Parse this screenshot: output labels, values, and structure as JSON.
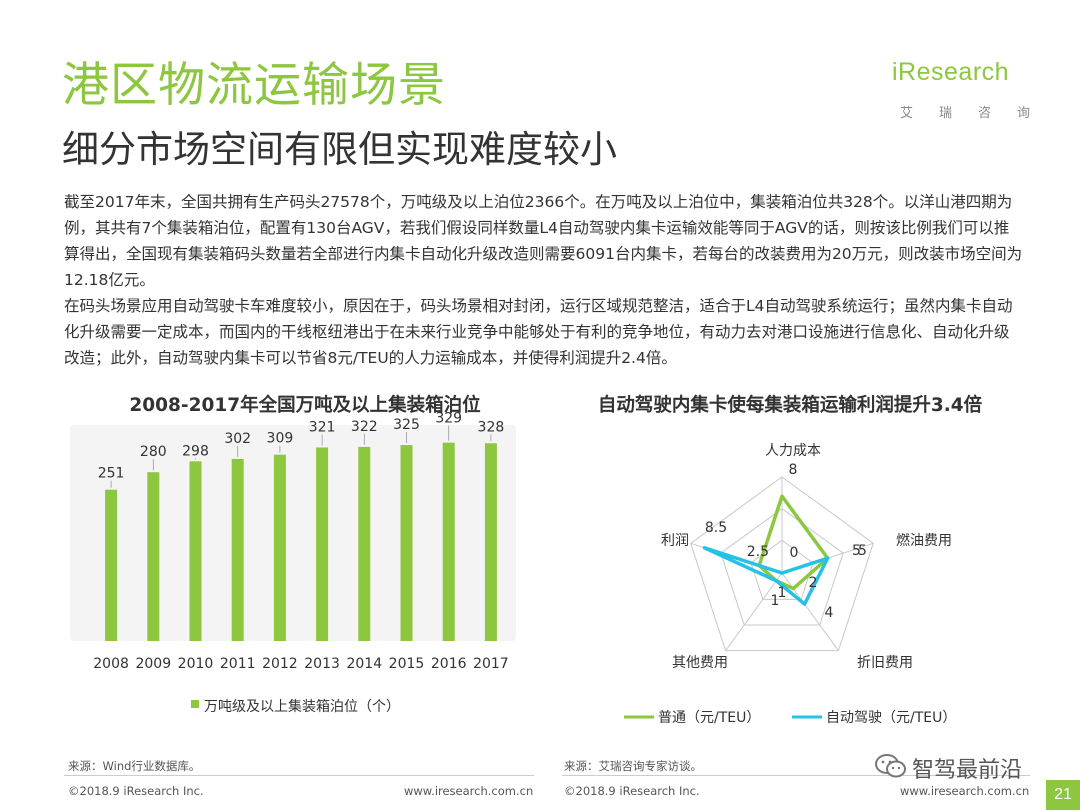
{
  "page": {
    "title": "港区物流运输场景",
    "subtitle": "细分市场空间有限但实现难度较小",
    "logo": {
      "word": "iResearch",
      "sub": [
        "艾",
        "瑞",
        "咨",
        "询"
      ]
    },
    "body": [
      "截至2017年末，全国共拥有生产码头27578个，万吨级及以上泊位2366个。在万吨及以上泊位中，集装箱泊位共328个。以洋山港四期为例，其共有7个集装箱泊位，配置有130台AGV，若我们假设同样数量L4自动驾驶内集卡运输效能等同于AGV的话，则按该比例我们可以推算得出，全国现有集装箱码头数量若全部进行内集卡自动化升级改造则需要6091台内集卡，若每台的改装费用为20万元，则改装市场空间为12.18亿元。",
      "在码头场景应用自动驾驶卡车难度较小，原因在于，码头场景相对封闭，运行区域规范整洁，适合于L4自动驾驶系统运行；虽然内集卡自动化升级需要一定成本，而国内的干线枢纽港出于在未来行业竞争中能够处于有利的竞争地位，有动力去对港口设施进行信息化、自动化升级改造；此外，自动驾驶内集卡可以节省8元/TEU的人力运输成本，并使得利润提升2.4倍。"
    ],
    "footer": {
      "left_source": "来源：Wind行业数据库。",
      "left_copyright": "©2018.9 iResearch Inc.",
      "left_url": "www.iresearch.com.cn",
      "right_source": "来源：艾瑞咨询专家访谈。",
      "right_copyright": "©2018.9 iResearch Inc.",
      "right_url": "www.iresearch.com.cn",
      "wechat": "智驾最前沿",
      "page_number": "21"
    },
    "colors": {
      "accent": "#8dc63f",
      "cyan": "#25c1e8",
      "axis": "#c8c8c8",
      "panel": "#f4f4f4"
    }
  },
  "chart_data": [
    {
      "type": "bar",
      "title": "2008-2017年全国万吨及以上集装箱泊位",
      "categories": [
        "2008",
        "2009",
        "2010",
        "2011",
        "2012",
        "2013",
        "2014",
        "2015",
        "2016",
        "2017"
      ],
      "series": [
        {
          "name": "万吨级及以上集装箱泊位（个）",
          "values": [
            251,
            280,
            298,
            302,
            309,
            321,
            322,
            325,
            329,
            328
          ],
          "color": "#8dc63f"
        }
      ],
      "ylim": [
        0,
        350
      ],
      "grid": false,
      "legend": "bottom"
    },
    {
      "type": "radar",
      "title": "自动驾驶内集卡使每集装箱运输利润提升3.4倍",
      "axes": [
        "人力成本",
        "燃油费用",
        "折旧费用",
        "其他费用",
        "利润"
      ],
      "rmax": 10,
      "series": [
        {
          "name": "普通（元/TEU）",
          "values": [
            8,
            5,
            2,
            1,
            2.5
          ],
          "labels": [
            "8",
            "5",
            "2",
            "1",
            "2.5"
          ],
          "color": "#8dc63f"
        },
        {
          "name": "自动驾驶（元/TEU）",
          "values": [
            0,
            5,
            4,
            1,
            8.5
          ],
          "labels": [
            "0",
            "5",
            "4",
            "1",
            "8.5"
          ],
          "color": "#25c1e8"
        }
      ],
      "legend": "bottom"
    }
  ]
}
